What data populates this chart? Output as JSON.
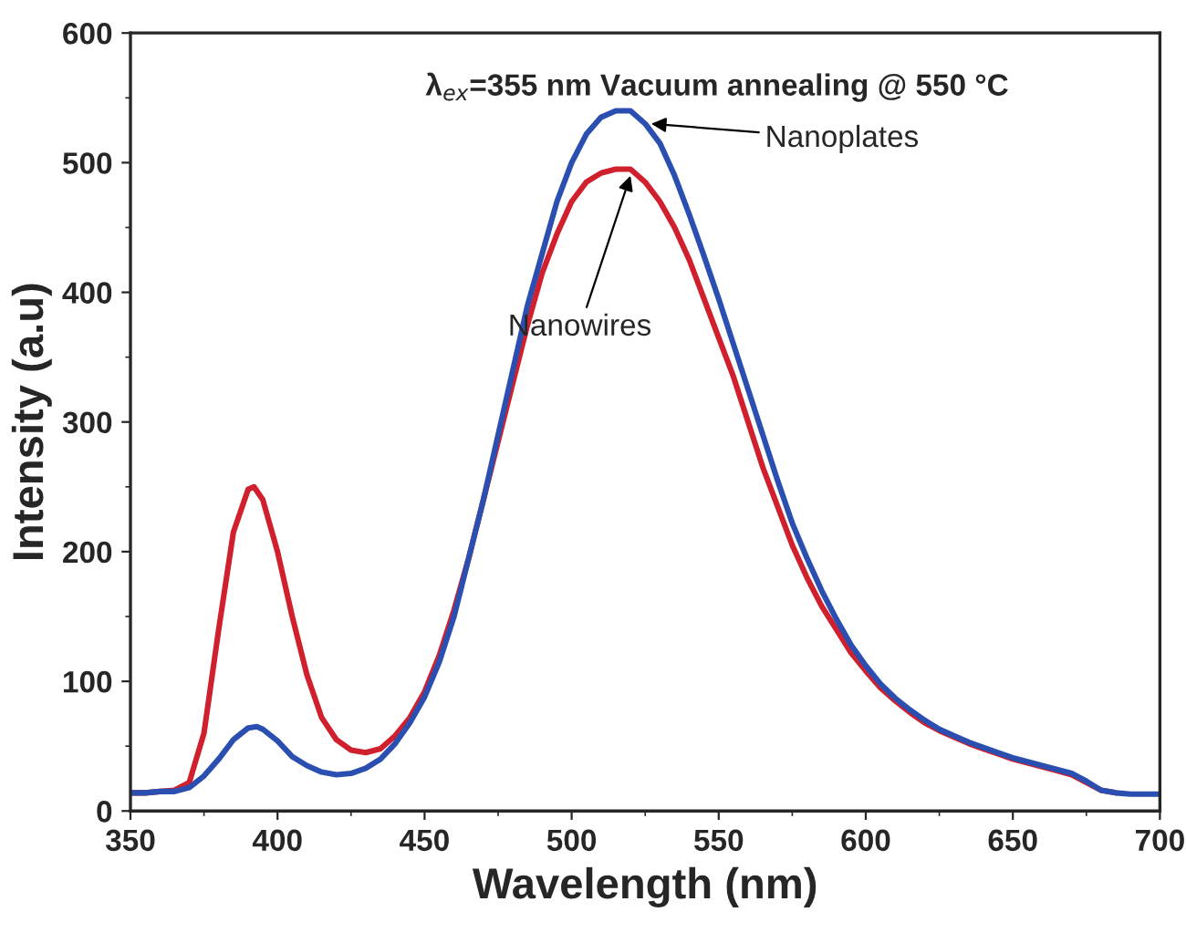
{
  "chart_data": {
    "type": "line",
    "xlabel": "Wavelength (nm)",
    "ylabel": "Intensity (a.u)",
    "xlim": [
      350,
      700
    ],
    "ylim": [
      0,
      600
    ],
    "xticks": [
      350,
      400,
      450,
      500,
      550,
      600,
      650,
      700
    ],
    "yticks": [
      0,
      100,
      200,
      300,
      400,
      500,
      600
    ],
    "grid": false,
    "legend": false,
    "marker": "none",
    "line_style": "solid",
    "annotations": [
      "λ$_{ex}$=355 nm Vacuum annealing @ 550 °C",
      {
        "text": "Nanoplates",
        "x": 527,
        "y": 530
      },
      {
        "text": "Nanowires",
        "x": 520,
        "y": 490
      }
    ],
    "series": [
      {
        "color": "#d0202e",
        "x": [
          350,
          355,
          360,
          365,
          370,
          375,
          380,
          385,
          390,
          392,
          395,
          400,
          405,
          410,
          415,
          420,
          425,
          430,
          435,
          440,
          445,
          450,
          455,
          460,
          465,
          470,
          475,
          480,
          485,
          490,
          495,
          500,
          505,
          510,
          515,
          520,
          525,
          530,
          535,
          540,
          545,
          550,
          555,
          560,
          565,
          570,
          575,
          580,
          585,
          590,
          595,
          600,
          605,
          610,
          615,
          620,
          625,
          630,
          635,
          640,
          645,
          650,
          655,
          660,
          665,
          670,
          675,
          680,
          685
        ],
        "values": [
          14,
          14,
          15,
          16,
          22,
          60,
          140,
          215,
          248,
          250,
          240,
          200,
          150,
          105,
          72,
          55,
          47,
          45,
          48,
          58,
          72,
          92,
          120,
          155,
          195,
          240,
          285,
          330,
          375,
          415,
          445,
          470,
          485,
          492,
          495,
          495,
          485,
          470,
          450,
          425,
          395,
          365,
          335,
          300,
          265,
          235,
          205,
          180,
          158,
          140,
          122,
          108,
          95,
          85,
          76,
          68,
          62,
          57,
          52,
          48,
          44,
          40,
          37,
          34,
          31,
          28,
          22,
          16,
          14
        ]
      },
      {
        "color": "#2a4fb0",
        "x": [
          350,
          355,
          360,
          365,
          370,
          375,
          380,
          385,
          390,
          393,
          395,
          400,
          405,
          410,
          415,
          420,
          425,
          430,
          435,
          440,
          445,
          450,
          455,
          460,
          465,
          470,
          475,
          480,
          485,
          490,
          495,
          500,
          505,
          510,
          515,
          520,
          525,
          530,
          535,
          540,
          545,
          550,
          555,
          560,
          565,
          570,
          575,
          580,
          585,
          590,
          595,
          600,
          605,
          610,
          615,
          620,
          625,
          630,
          635,
          640,
          645,
          650,
          655,
          660,
          665,
          670,
          675,
          680,
          685,
          690,
          695,
          700
        ],
        "values": [
          14,
          14,
          15,
          15,
          18,
          27,
          40,
          55,
          64,
          65,
          63,
          54,
          42,
          35,
          30,
          28,
          29,
          33,
          40,
          52,
          68,
          88,
          115,
          150,
          195,
          240,
          290,
          340,
          390,
          430,
          470,
          500,
          522,
          535,
          540,
          540,
          530,
          515,
          490,
          460,
          428,
          395,
          360,
          325,
          290,
          255,
          222,
          195,
          170,
          148,
          128,
          112,
          98,
          87,
          78,
          70,
          63,
          58,
          53,
          49,
          45,
          41,
          38,
          35,
          32,
          29,
          23,
          16,
          14,
          13,
          13,
          13
        ]
      }
    ]
  }
}
